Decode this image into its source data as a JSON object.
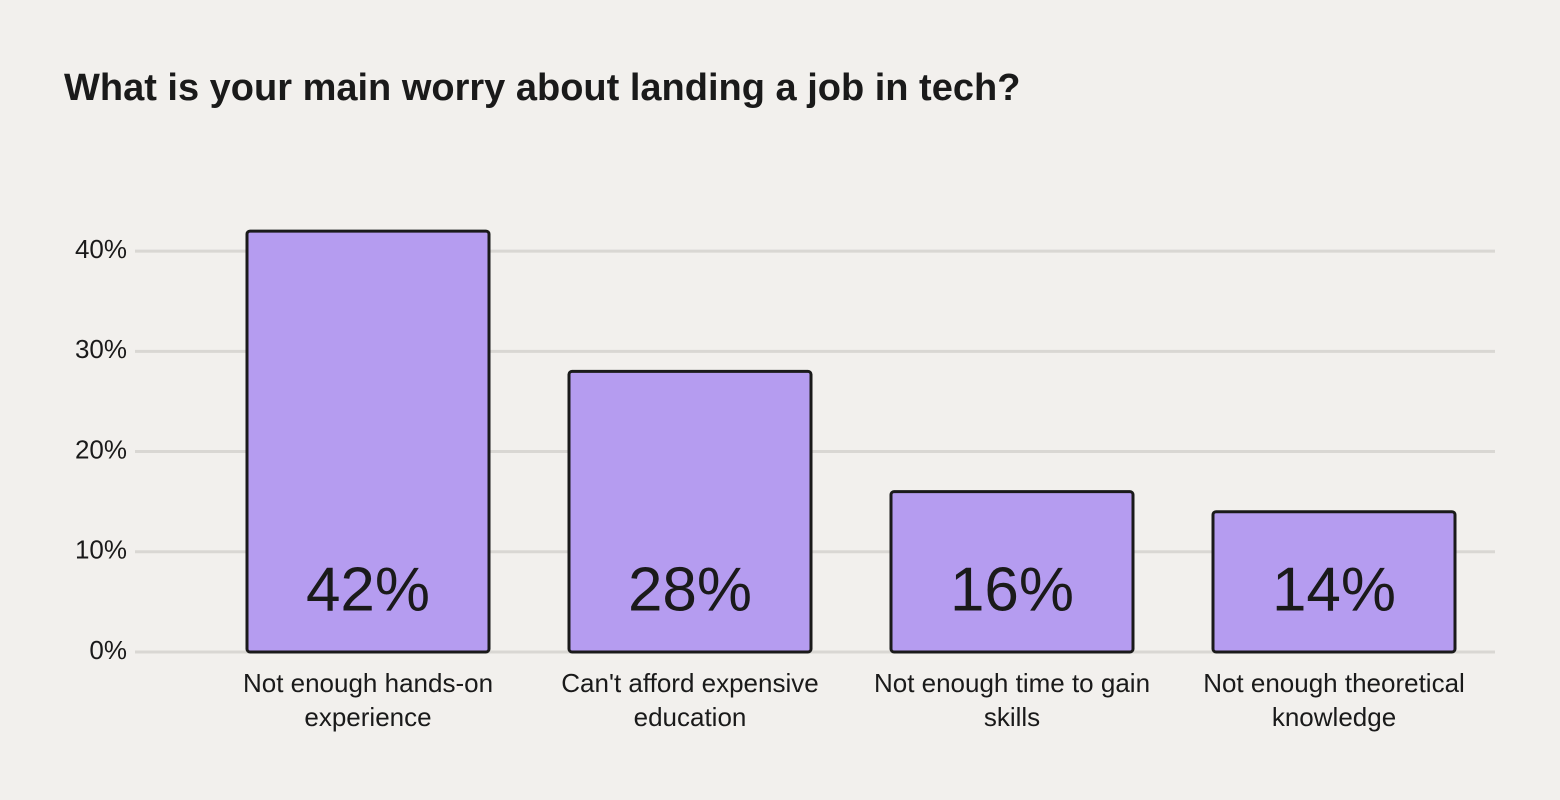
{
  "chart_data": {
    "type": "bar",
    "title": "What is your main worry about landing a job in tech?",
    "categories": [
      "Not enough hands-on experience",
      "Can't afford expensive education",
      "Not enough time to gain skills",
      "Not enough theoretical knowledge"
    ],
    "values": [
      42,
      28,
      16,
      14
    ],
    "value_labels": [
      "42%",
      "28%",
      "16%",
      "14%"
    ],
    "color": "#b59cf0",
    "ylim": [
      0,
      45
    ],
    "yticks": [
      {
        "value": 0,
        "label": "0%"
      },
      {
        "value": 10,
        "label": "10%"
      },
      {
        "value": 20,
        "label": "20%"
      },
      {
        "value": 30,
        "label": "30%"
      },
      {
        "value": 40,
        "label": "40%"
      }
    ],
    "grid": true
  }
}
